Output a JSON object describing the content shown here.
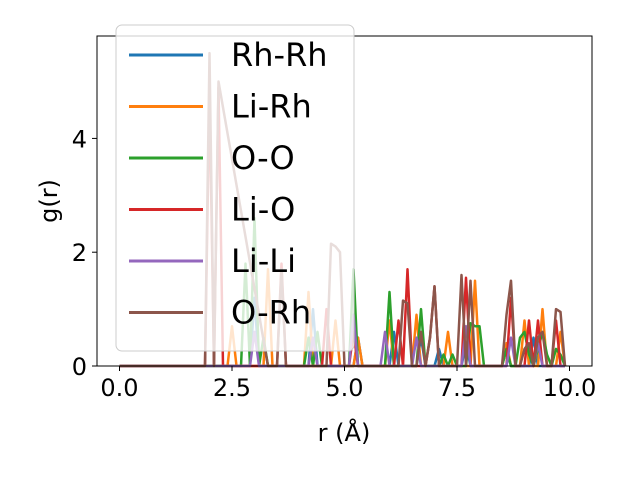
{
  "chart_data": {
    "type": "line",
    "xlabel": "r (Å)",
    "ylabel": "g(r)",
    "xlim": [
      -0.5,
      10.5
    ],
    "ylim": [
      0,
      5.8
    ],
    "xticks": [
      0.0,
      2.5,
      5.0,
      7.5,
      10.0
    ],
    "xtick_labels": [
      "0.0",
      "2.5",
      "5.0",
      "7.5",
      "10.0"
    ],
    "yticks": [
      0,
      2,
      4
    ],
    "ytick_labels": [
      "0",
      "2",
      "4"
    ],
    "grid": false,
    "legend_position": "upper-left",
    "series": [
      {
        "name": "Rh-Rh",
        "color": "#1f77b4",
        "x": [
          0.0,
          2.9,
          3.0,
          3.1,
          4.2,
          4.3,
          4.4,
          5.2,
          5.3,
          5.4,
          6.0,
          6.1,
          6.2,
          6.6,
          6.7,
          6.8,
          7.0,
          7.1,
          7.2,
          7.6,
          7.7,
          7.8,
          8.5,
          8.6,
          8.7,
          9.1,
          9.2,
          9.3,
          9.9
        ],
        "y": [
          0,
          0,
          1.2,
          0,
          0,
          1.0,
          0,
          0,
          0.5,
          0,
          0,
          0.6,
          0,
          0,
          0.5,
          0,
          0,
          0.3,
          0,
          0,
          0.4,
          0,
          0,
          0.3,
          0,
          0,
          0.5,
          0,
          0
        ]
      },
      {
        "name": "Li-Rh",
        "color": "#ff7f0e",
        "x": [
          0.0,
          2.4,
          2.5,
          2.6,
          3.2,
          3.3,
          3.4,
          4.1,
          4.2,
          4.3,
          4.7,
          4.8,
          4.9,
          5.2,
          5.3,
          5.4,
          5.9,
          6.0,
          6.1,
          6.5,
          6.6,
          6.7,
          7.2,
          7.3,
          7.4,
          7.8,
          7.9,
          8.0,
          8.5,
          8.6,
          8.7,
          8.9,
          9.0,
          9.1,
          9.3,
          9.4,
          9.5,
          9.7,
          9.8,
          9.9
        ],
        "y": [
          0,
          0,
          0.7,
          0,
          0,
          1.7,
          0,
          0,
          1.3,
          0,
          0,
          0.8,
          0,
          0,
          0.5,
          0,
          0,
          0.8,
          0,
          0,
          0.9,
          0,
          0,
          0.6,
          0,
          0,
          1.5,
          0,
          0,
          0.4,
          0,
          0,
          0.8,
          0,
          0,
          1.0,
          0,
          0,
          0.6,
          0
        ]
      },
      {
        "name": "O-O",
        "color": "#2ca02c",
        "x": [
          0.0,
          2.6,
          2.7,
          2.8,
          2.9,
          3.0,
          3.1,
          3.2,
          3.3,
          3.4,
          4.1,
          4.2,
          4.3,
          4.4,
          4.5,
          4.6,
          5.0,
          5.1,
          5.2,
          5.3,
          5.8,
          5.9,
          6.0,
          6.1,
          6.5,
          6.6,
          6.7,
          6.8,
          7.0,
          7.1,
          7.2,
          7.3,
          7.4,
          7.5,
          7.6,
          7.7,
          7.8,
          7.9,
          8.0,
          8.1,
          8.2,
          8.4,
          8.5,
          8.6,
          8.7,
          8.8,
          8.9,
          9.0,
          9.1,
          9.2,
          9.3,
          9.4,
          9.5,
          9.6,
          9.7,
          9.8,
          9.9
        ],
        "y": [
          0,
          0,
          0,
          1.8,
          0,
          2.6,
          0,
          0.5,
          0,
          0,
          0,
          0.5,
          0,
          0.6,
          0,
          0,
          0,
          0,
          1.7,
          0,
          0,
          0,
          1.3,
          0,
          0,
          0,
          1.0,
          0,
          0,
          0,
          0.2,
          0,
          0.2,
          0,
          0,
          0,
          0.75,
          0.7,
          0.7,
          0,
          0,
          0,
          0,
          0.3,
          0,
          0,
          0.5,
          0.6,
          0.2,
          0,
          0.3,
          0.6,
          0.2,
          0,
          0.3,
          0.2,
          0
        ]
      },
      {
        "name": "Li-O",
        "color": "#d62728",
        "x": [
          0.0,
          1.9,
          2.0,
          2.1,
          2.2,
          2.3,
          3.5,
          3.6,
          3.7,
          3.8,
          4.5,
          4.6,
          4.7,
          5.1,
          5.2,
          5.3,
          6.1,
          6.2,
          6.3,
          6.4,
          6.5,
          6.8,
          6.9,
          7.0,
          7.1,
          7.6,
          7.7,
          7.8,
          8.6,
          8.7,
          8.8,
          9.0,
          9.1,
          9.2,
          9.3,
          9.4,
          9.6,
          9.7,
          9.8,
          9.9
        ],
        "y": [
          0,
          0,
          4.8,
          0,
          4.9,
          0,
          0,
          1.8,
          0,
          0,
          0,
          1.0,
          0,
          0,
          0.6,
          0,
          0,
          0.8,
          0,
          1.7,
          0,
          0,
          0.5,
          1.4,
          0,
          0,
          1.55,
          0,
          0,
          1.2,
          0,
          0,
          0.8,
          0,
          0.8,
          0,
          0,
          0.8,
          0,
          0
        ]
      },
      {
        "name": "Li-Li",
        "color": "#9467bd",
        "x": [
          0.0,
          2.9,
          3.0,
          3.1,
          4.2,
          4.3,
          4.4,
          5.1,
          5.2,
          5.3,
          5.8,
          5.9,
          6.0,
          6.5,
          6.6,
          6.7,
          7.6,
          7.7,
          7.8,
          8.6,
          8.7,
          8.8,
          9.2,
          9.3,
          9.4,
          9.9
        ],
        "y": [
          0,
          0,
          0.6,
          0,
          0,
          0.5,
          0,
          0,
          0.9,
          0,
          0,
          0.6,
          0,
          0,
          0.5,
          0,
          0,
          0.7,
          0,
          0,
          0.5,
          0,
          0,
          0.4,
          0,
          0
        ]
      },
      {
        "name": "O-Rh",
        "color": "#8c564b",
        "x": [
          0.0,
          1.8,
          1.9,
          2.0,
          2.1,
          2.2,
          3.3,
          3.4,
          3.5,
          3.6,
          3.7,
          3.8,
          4.5,
          4.6,
          4.7,
          4.8,
          4.9,
          5.0,
          5.1,
          6.0,
          6.1,
          6.2,
          6.3,
          6.4,
          6.5,
          6.6,
          6.7,
          6.8,
          6.9,
          7.0,
          7.1,
          7.2,
          7.3,
          7.4,
          7.5,
          7.6,
          7.7,
          7.8,
          7.9,
          8.0,
          8.5,
          8.6,
          8.7,
          8.8,
          8.9,
          9.0,
          9.1,
          9.2,
          9.3,
          9.4,
          9.5,
          9.6,
          9.7,
          9.8,
          9.9
        ],
        "y": [
          0,
          0,
          0,
          5.5,
          0,
          5.0,
          0,
          0,
          0,
          1.7,
          0,
          0,
          0,
          0,
          2.15,
          2.1,
          2.0,
          0,
          0,
          0,
          0,
          0,
          1.15,
          1.1,
          0,
          0,
          0.6,
          0,
          0.5,
          1.4,
          0,
          0,
          0,
          0,
          0,
          1.6,
          0,
          1.5,
          0,
          0,
          0,
          0.9,
          1.5,
          0,
          0,
          0.3,
          0.4,
          0,
          0.5,
          0.6,
          0,
          0,
          1.0,
          0.95,
          0
        ]
      }
    ]
  }
}
